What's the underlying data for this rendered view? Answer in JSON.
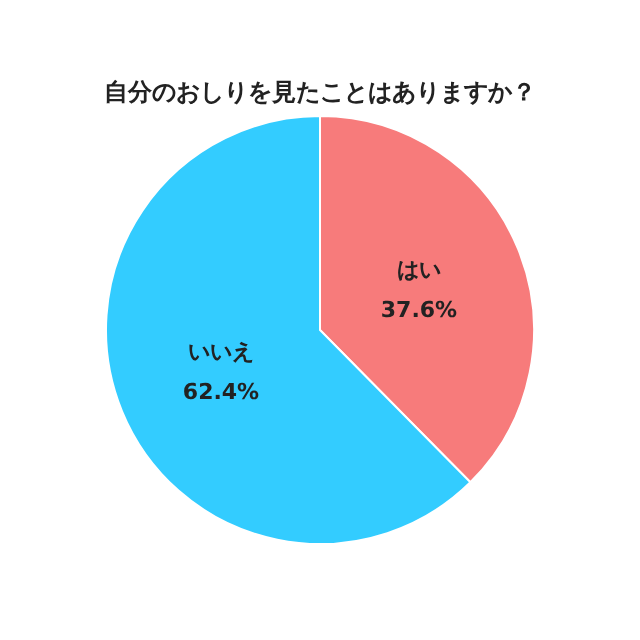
{
  "chart_data": {
    "type": "pie",
    "title": "自分のおしりを見たことはありますか？",
    "categories": [
      "はい",
      "いいえ"
    ],
    "values": [
      37.6,
      62.4
    ],
    "colors": [
      "#f77b7b",
      "#33ccff"
    ],
    "value_labels": [
      "37.6%",
      "62.4%"
    ]
  }
}
